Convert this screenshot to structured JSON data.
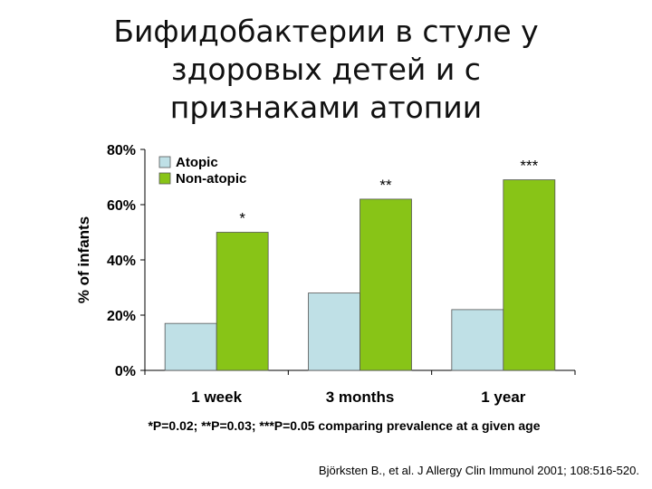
{
  "title_lines": [
    "Бифидобактерии в стуле у",
    "здоровых детей и с",
    "признаками атопии"
  ],
  "footnote": "*P=0.02; **P=0.03; ***P=0.05 comparing prevalence at a given age",
  "citation": "Björksten B., et al. J Allergy Clin Immunol 2001; 108:516-520.",
  "colors": {
    "atopic": "#bfe0e6",
    "non_atopic": "#88c417"
  },
  "chart_data": {
    "type": "bar",
    "categories": [
      "1 week",
      "3 months",
      "1 year"
    ],
    "series": [
      {
        "name": "Atopic",
        "values": [
          17,
          28,
          22
        ]
      },
      {
        "name": "Non-atopic",
        "values": [
          50,
          62,
          69
        ]
      }
    ],
    "significance": [
      "*",
      "**",
      "***"
    ],
    "ylabel": "% of infants",
    "xlabel": "",
    "ylim": [
      0,
      80
    ],
    "yticks": [
      "0%",
      "20%",
      "40%",
      "60%",
      "80%"
    ],
    "legend": "top-left",
    "grid": false
  }
}
